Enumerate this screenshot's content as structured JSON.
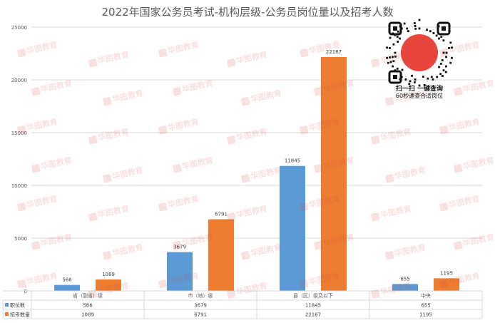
{
  "chart_data": {
    "type": "bar",
    "title": "2022年国家公务员考试-机构层级-公务员岗位量以及招考人数",
    "categories": [
      "省（副省）级",
      "市（地）级",
      "县（区）级及以下",
      "中央"
    ],
    "series": [
      {
        "name": "职位数",
        "color": "#5b9bd5",
        "values": [
          566,
          3679,
          11845,
          655
        ]
      },
      {
        "name": "招考数量",
        "color": "#ed7d31",
        "values": [
          1089,
          6791,
          22167,
          1195
        ]
      }
    ],
    "ylim": [
      0,
      25000
    ],
    "yticks": [
      0,
      5000,
      10000,
      15000,
      20000,
      25000
    ],
    "grid": true,
    "legend": "data-table"
  },
  "watermark": {
    "text": "华图教育"
  },
  "qr": {
    "headline": "扫一扫 一键查询",
    "subline": "60秒速查合适岗位"
  }
}
